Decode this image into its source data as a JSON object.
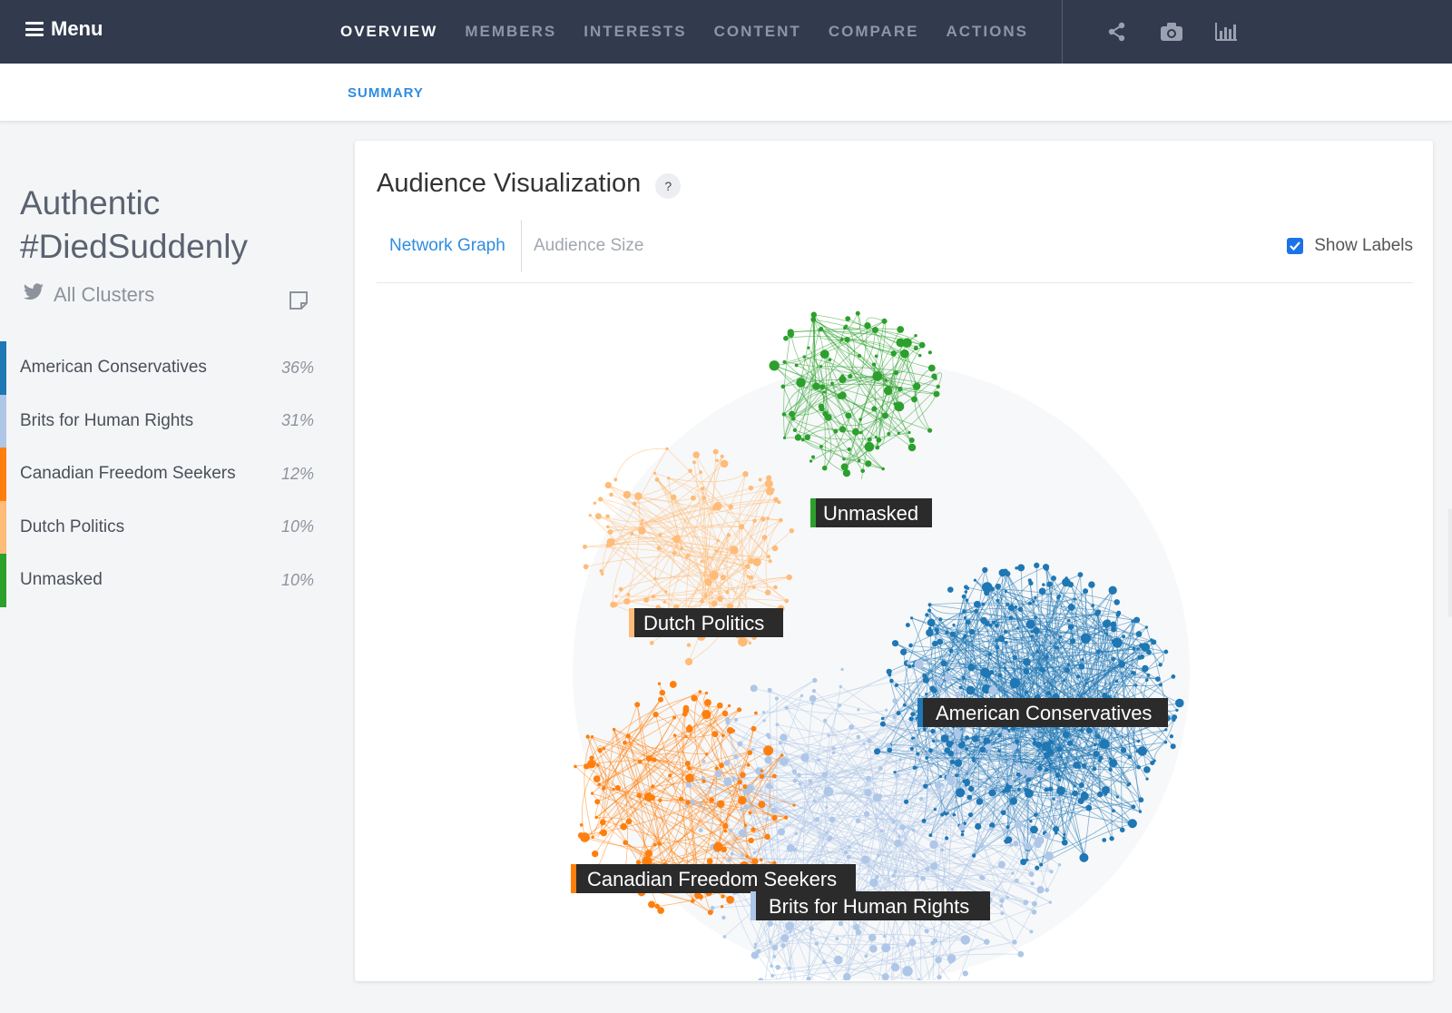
{
  "topbar": {
    "menu_label": "Menu",
    "nav": [
      "OVERVIEW",
      "MEMBERS",
      "INTERESTS",
      "CONTENT",
      "COMPARE",
      "ACTIONS"
    ],
    "active_nav": "OVERVIEW",
    "tools": [
      "share-icon",
      "camera-icon",
      "bar-chart-icon"
    ]
  },
  "subnav": {
    "tab": "SUMMARY"
  },
  "sidebar": {
    "title": "Authentic #DiedSuddenly",
    "all_clusters_label": "All Clusters",
    "clusters": [
      {
        "name": "American Conservatives",
        "pct": "36%",
        "color": "#1f77b4"
      },
      {
        "name": "Brits for Human Rights",
        "pct": "31%",
        "color": "#aec7e8"
      },
      {
        "name": "Canadian Freedom Seekers",
        "pct": "12%",
        "color": "#ff7f0e"
      },
      {
        "name": "Dutch Politics",
        "pct": "10%",
        "color": "#ffbb78"
      },
      {
        "name": "Unmasked",
        "pct": "10%",
        "color": "#2ca02c"
      }
    ]
  },
  "panel": {
    "title": "Audience Visualization",
    "help": "?",
    "tab_network": "Network Graph",
    "tab_size": "Audience Size",
    "show_labels_label": "Show Labels",
    "show_labels_checked": true
  },
  "graph_labels": [
    "Unmasked",
    "Dutch Politics",
    "American Conservatives",
    "Canadian Freedom Seekers",
    "Brits for Human Rights"
  ]
}
